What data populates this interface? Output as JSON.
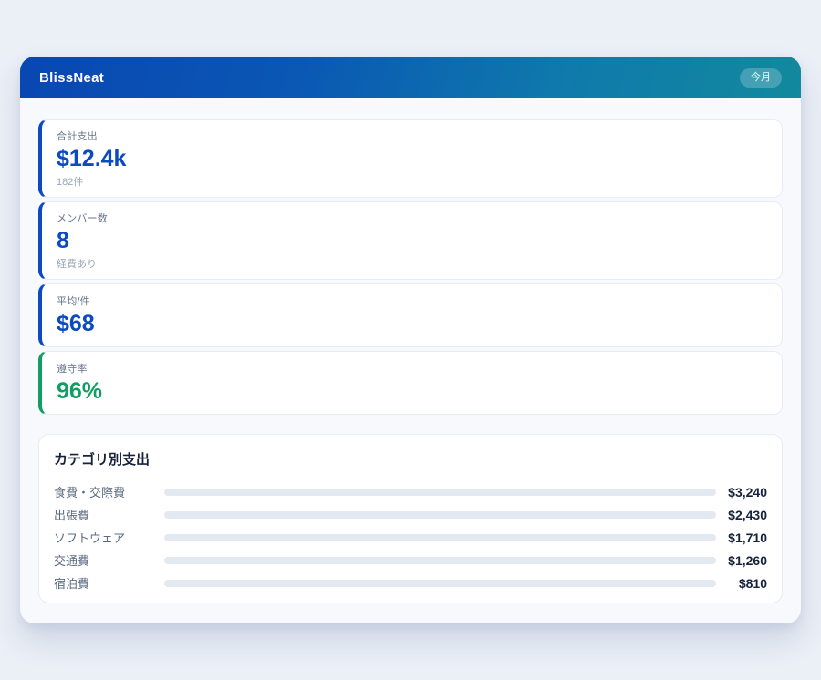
{
  "header": {
    "title": "BlissNeat",
    "badge": "今月",
    "gradient": [
      "#0947b2",
      "#12899e"
    ]
  },
  "stats": [
    {
      "label": "合計支出",
      "value": "$12.4k",
      "sub": "182件",
      "accent": "#0b4ac1"
    },
    {
      "label": "メンバー数",
      "value": "8",
      "sub": "経費あり",
      "accent": "#0b4ac1"
    },
    {
      "label": "平均/件",
      "value": "$68",
      "accent": "#0b4ac1"
    },
    {
      "label": "遵守率",
      "value": "96%",
      "accent": "#109e63"
    }
  ],
  "categories": {
    "title": "カテゴリ別支出",
    "scale_max": 4500,
    "track_color": "#e3e9f0",
    "rows": [
      {
        "label": "食費・交際費",
        "amount": "$3,240",
        "value": 3240,
        "bar_colors": [
          "#0a3f9b",
          "#0d8da0"
        ]
      },
      {
        "label": "出張費",
        "amount": "$2,430",
        "value": 2430,
        "bar_colors": [
          "#0a3f9b",
          "#0b6fd6"
        ]
      },
      {
        "label": "ソフトウェア",
        "amount": "$1,710",
        "value": 1710,
        "bar_colors": [
          "#0e7a4e",
          "#15917f"
        ]
      },
      {
        "label": "交通費",
        "amount": "$1,260",
        "value": 1260,
        "bar_colors": [
          "#6d28d9",
          "#9333ea"
        ]
      },
      {
        "label": "宿泊費",
        "amount": "$810",
        "value": 810,
        "bar_colors": [
          "#0e7490",
          "#0cb6d4"
        ]
      }
    ]
  },
  "chart_data": {
    "type": "bar",
    "orientation": "horizontal",
    "title": "カテゴリ別支出",
    "categories": [
      "食費・交際費",
      "出張費",
      "ソフトウェア",
      "交通費",
      "宿泊費"
    ],
    "values": [
      3240,
      2430,
      1710,
      1260,
      810
    ],
    "value_labels": [
      "$3,240",
      "$2,430",
      "$1,710",
      "$1,260",
      "$810"
    ],
    "xlabel": "",
    "ylabel": "",
    "xlim": [
      0,
      4500
    ],
    "grid": false,
    "legend": false
  }
}
